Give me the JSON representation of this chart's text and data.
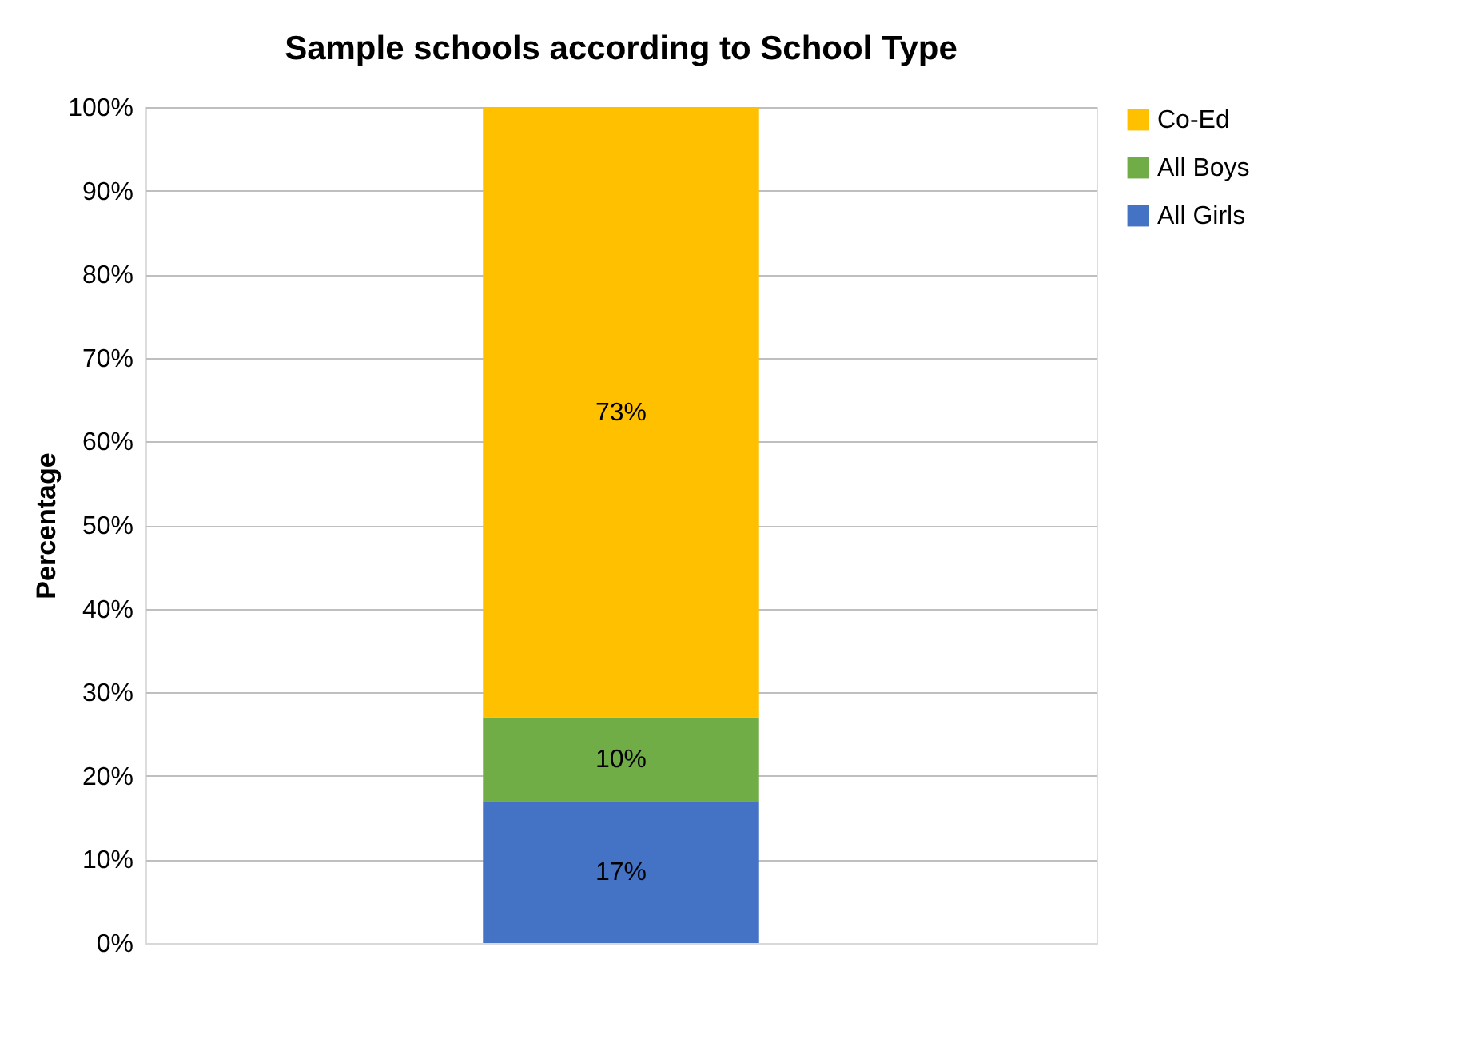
{
  "chart_data": {
    "type": "bar",
    "title": "Sample schools according to  School Type",
    "ylabel": "Percentage",
    "categories": [
      null
    ],
    "stacked": true,
    "series": [
      {
        "name": "All Girls",
        "color": "#4472c4",
        "values": [
          17
        ],
        "value_labels": [
          "17%"
        ]
      },
      {
        "name": "All Boys",
        "color": "#70ad47",
        "values": [
          10
        ],
        "value_labels": [
          "10%"
        ]
      },
      {
        "name": "Co-Ed",
        "color": "#ffc000",
        "values": [
          73
        ],
        "value_labels": [
          "73%"
        ]
      }
    ],
    "ylim": [
      0,
      100
    ],
    "yticks": [
      {
        "value": 0,
        "label": "0%"
      },
      {
        "value": 10,
        "label": "10%"
      },
      {
        "value": 20,
        "label": "20%"
      },
      {
        "value": 30,
        "label": "30%"
      },
      {
        "value": 40,
        "label": "40%"
      },
      {
        "value": 50,
        "label": "50%"
      },
      {
        "value": 60,
        "label": "60%"
      },
      {
        "value": 70,
        "label": "70%"
      },
      {
        "value": 80,
        "label": "80%"
      },
      {
        "value": 90,
        "label": "90%"
      },
      {
        "value": 100,
        "label": "100%"
      }
    ],
    "grid": "y",
    "legend": "right"
  }
}
